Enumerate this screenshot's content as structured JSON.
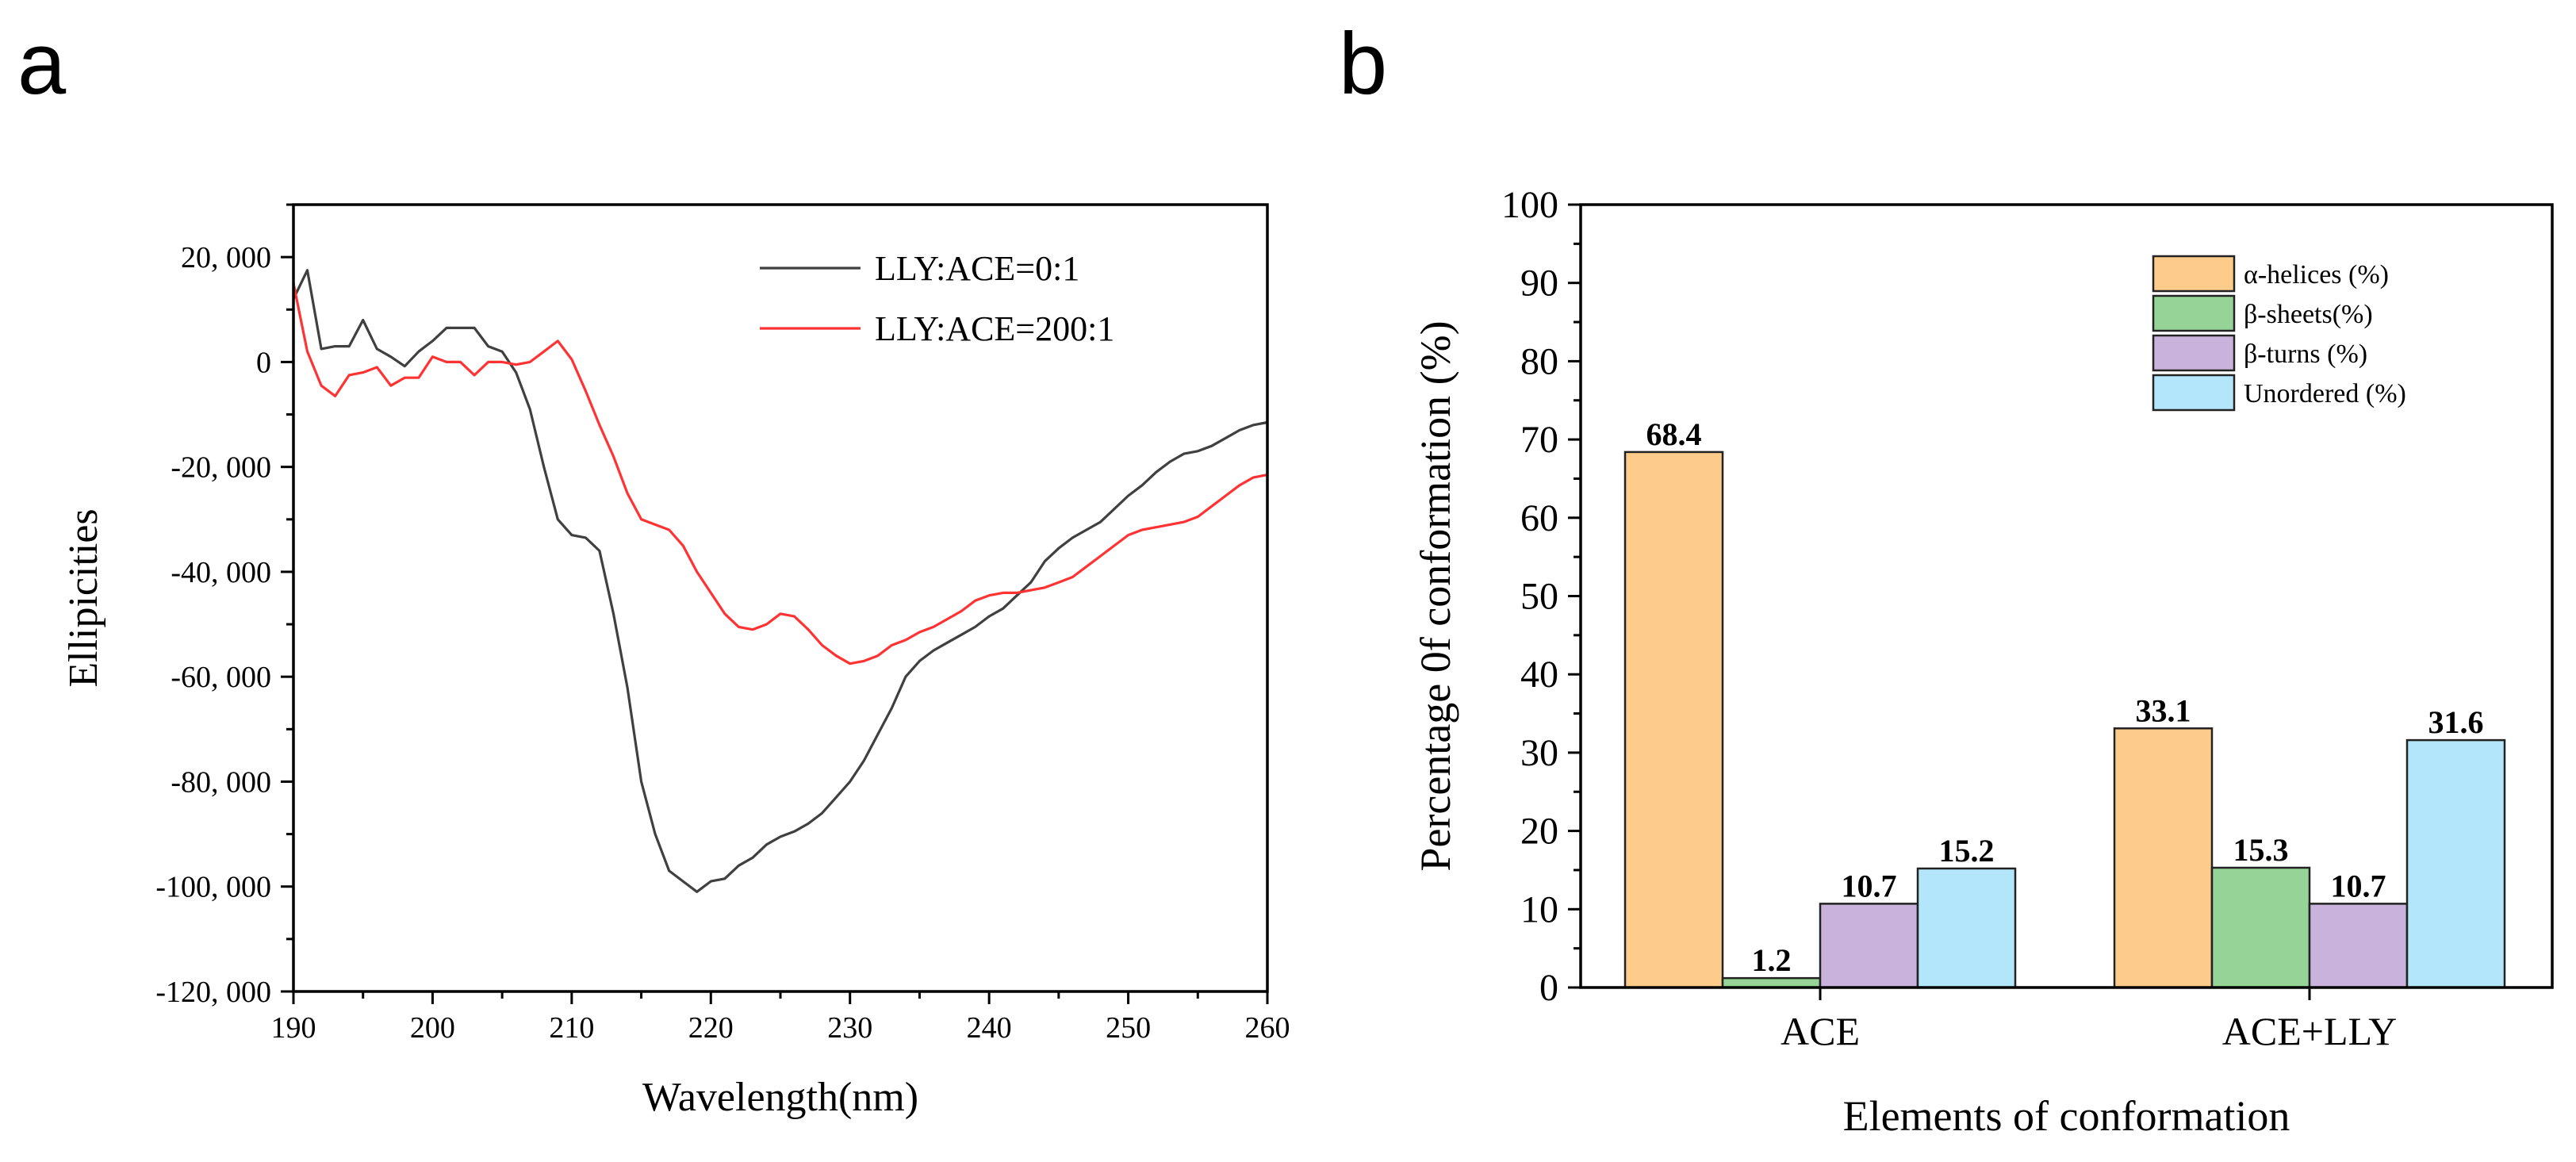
{
  "panels": {
    "a": {
      "letter": "a"
    },
    "b": {
      "letter": "b"
    }
  },
  "chart_data": [
    {
      "type": "line",
      "panel": "a",
      "title": "",
      "xlabel": "Wavelength(nm)",
      "ylabel": "Ellipicities",
      "xlim": [
        190,
        260
      ],
      "ylim": [
        -120000,
        30000
      ],
      "xticks": [
        190,
        200,
        210,
        220,
        230,
        240,
        250,
        260
      ],
      "xtick_labels": [
        "190",
        "200",
        "210",
        "220",
        "230",
        "240",
        "250",
        "260"
      ],
      "yticks": [
        -120000,
        -100000,
        -80000,
        -60000,
        -40000,
        -20000,
        0,
        20000
      ],
      "ytick_labels": [
        "-120, 000",
        "-100, 000",
        "-80, 000",
        "-60, 000",
        "-40, 000",
        "-20, 000",
        "0",
        "20, 000"
      ],
      "legend_position": "top-right",
      "series": [
        {
          "name": "LLY:ACE=0:1",
          "color": "#404040",
          "x": [
            190,
            191,
            192,
            193,
            194,
            195,
            196,
            197,
            198,
            199,
            200,
            201,
            202,
            203,
            204,
            205,
            206,
            207,
            208,
            209,
            210,
            211,
            212,
            213,
            214,
            215,
            216,
            217,
            218,
            219,
            220,
            221,
            222,
            223,
            224,
            225,
            226,
            227,
            228,
            229,
            230,
            231,
            232,
            233,
            234,
            235,
            236,
            237,
            238,
            239,
            240,
            241,
            242,
            243,
            244,
            245,
            246,
            247,
            248,
            249,
            250,
            251,
            252,
            253,
            254,
            255,
            256,
            257,
            258,
            259,
            260
          ],
          "y": [
            12000,
            17500,
            2500,
            3000,
            3000,
            8000,
            2500,
            1000,
            -800,
            2000,
            4000,
            6500,
            6500,
            6500,
            3000,
            2000,
            -2000,
            -9000,
            -20000,
            -30000,
            -33000,
            -33500,
            -36000,
            -48000,
            -62000,
            -80000,
            -90000,
            -97000,
            -99000,
            -101000,
            -99000,
            -98500,
            -96000,
            -94500,
            -92000,
            -90500,
            -89500,
            -88000,
            -86000,
            -83000,
            -80000,
            -76000,
            -71000,
            -66000,
            -60000,
            -57000,
            -55000,
            -53500,
            -52000,
            -50500,
            -48500,
            -47000,
            -44500,
            -42000,
            -38000,
            -35500,
            -33500,
            -32000,
            -30500,
            -28000,
            -25500,
            -23500,
            -21000,
            -19000,
            -17500,
            -17000,
            -16000,
            -14500,
            -13000,
            -12000,
            -11500
          ]
        },
        {
          "name": "LLY:ACE=200:1",
          "color": "#ff3333",
          "x": [
            190,
            191,
            192,
            193,
            194,
            195,
            196,
            197,
            198,
            199,
            200,
            201,
            202,
            203,
            204,
            205,
            206,
            207,
            208,
            209,
            210,
            211,
            212,
            213,
            214,
            215,
            216,
            217,
            218,
            219,
            220,
            221,
            222,
            223,
            224,
            225,
            226,
            227,
            228,
            229,
            230,
            231,
            232,
            233,
            234,
            235,
            236,
            237,
            238,
            239,
            240,
            241,
            242,
            243,
            244,
            245,
            246,
            247,
            248,
            249,
            250,
            251,
            252,
            253,
            254,
            255,
            256,
            257,
            258,
            259,
            260
          ],
          "y": [
            15000,
            2000,
            -4500,
            -6500,
            -2500,
            -2000,
            -1000,
            -4500,
            -3000,
            -3000,
            1000,
            0,
            0,
            -2500,
            0,
            0,
            -500,
            0,
            2000,
            4000,
            500,
            -5500,
            -12000,
            -18000,
            -25000,
            -30000,
            -31000,
            -32000,
            -35000,
            -40000,
            -44000,
            -48000,
            -50500,
            -51000,
            -50000,
            -48000,
            -48500,
            -51000,
            -54000,
            -56000,
            -57500,
            -57000,
            -56000,
            -54000,
            -53000,
            -51500,
            -50500,
            -49000,
            -47500,
            -45500,
            -44500,
            -44000,
            -44000,
            -43500,
            -43000,
            -42000,
            -41000,
            -39000,
            -37000,
            -35000,
            -33000,
            -32000,
            -31500,
            -31000,
            -30500,
            -29500,
            -27500,
            -25500,
            -23500,
            -22000,
            -21500
          ]
        }
      ]
    },
    {
      "type": "bar",
      "panel": "b",
      "title": "",
      "xlabel": "Elements of conformation",
      "ylabel": "Percentage 0f conformation (%)",
      "ylim": [
        0,
        100
      ],
      "yticks": [
        0,
        10,
        20,
        30,
        40,
        50,
        60,
        70,
        80,
        90,
        100
      ],
      "ytick_labels": [
        "0",
        "10",
        "20",
        "30",
        "40",
        "50",
        "60",
        "70",
        "80",
        "90",
        "100"
      ],
      "categories": [
        "ACE",
        "ACE+LLY"
      ],
      "legend_position": "top-right",
      "series": [
        {
          "name": "α-helices (%)",
          "color": "#fdcb8a",
          "values": [
            68.4,
            33.1
          ],
          "labels": [
            "68.4",
            "33.1"
          ]
        },
        {
          "name": "β-sheets(%)",
          "color": "#95d496",
          "values": [
            1.2,
            15.3
          ],
          "labels": [
            "1.2",
            "15.3"
          ]
        },
        {
          "name": "β-turns (%)",
          "color": "#c9b3dc",
          "values": [
            10.7,
            10.7
          ],
          "labels": [
            "10.7",
            "10.7"
          ]
        },
        {
          "name": "Unordered (%)",
          "color": "#b3e6fb",
          "values": [
            15.2,
            31.6
          ],
          "labels": [
            "15.2",
            "31.6"
          ]
        }
      ]
    }
  ]
}
